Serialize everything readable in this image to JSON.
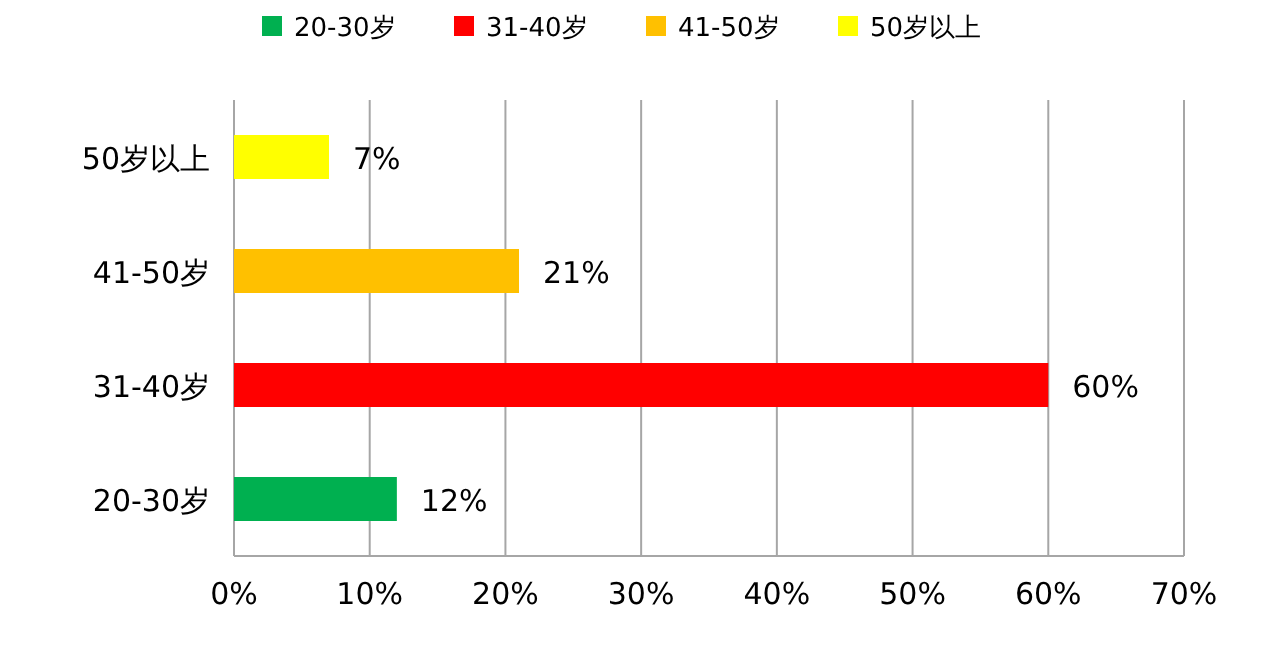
{
  "chart_data": {
    "type": "bar",
    "orientation": "horizontal",
    "categories": [
      "50岁以上",
      "41-50岁",
      "31-40岁",
      "20-30岁"
    ],
    "series": [
      {
        "name": "20-30岁",
        "color": "#00b050",
        "values": [
          null,
          null,
          null,
          12
        ],
        "value_labels": [
          null,
          null,
          null,
          "12%"
        ]
      },
      {
        "name": "31-40岁",
        "color": "#ff0000",
        "values": [
          null,
          null,
          60,
          null
        ],
        "value_labels": [
          null,
          null,
          "60%",
          null
        ]
      },
      {
        "name": "41-50岁",
        "color": "#ffc000",
        "values": [
          null,
          21,
          null,
          null
        ],
        "value_labels": [
          null,
          "21%",
          null,
          null
        ]
      },
      {
        "name": "50岁以上",
        "color": "#ffff00",
        "values": [
          7,
          null,
          null,
          null
        ],
        "value_labels": [
          "7%",
          null,
          null,
          null
        ]
      }
    ],
    "xlim": [
      0,
      70
    ],
    "xticks": [
      {
        "value": 0,
        "label": "0%"
      },
      {
        "value": 10,
        "label": "10%"
      },
      {
        "value": 20,
        "label": "20%"
      },
      {
        "value": 30,
        "label": "30%"
      },
      {
        "value": 40,
        "label": "40%"
      },
      {
        "value": 50,
        "label": "50%"
      },
      {
        "value": 60,
        "label": "60%"
      },
      {
        "value": 70,
        "label": "70%"
      }
    ],
    "grid": "x",
    "legend": "top"
  }
}
